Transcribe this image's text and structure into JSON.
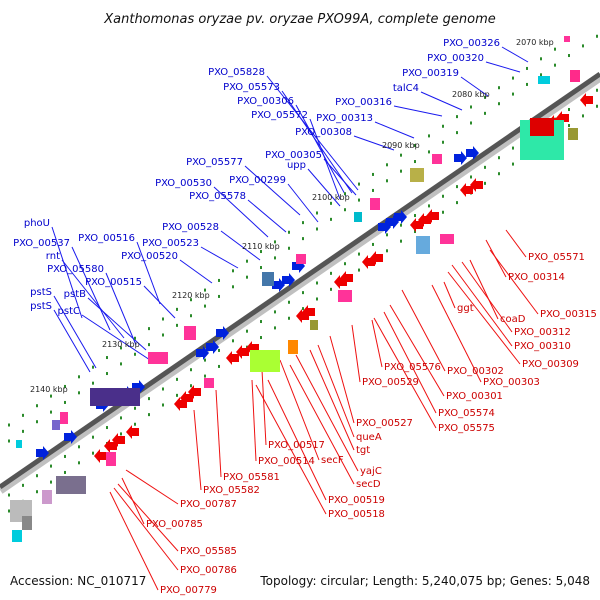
{
  "title": "Xanthomonas oryzae pv. oryzae PXO99A, complete genome",
  "accession": "Accession: NC_010717",
  "summary": "Topology: circular; Length: 5,240,075 bp; Genes: 5,048",
  "colors": {
    "backbone": "#555555",
    "forward_label": "#0000cc",
    "reverse_label": "#cc0000",
    "tick": "#2a8a2a",
    "forward_arrow": "#0022dd",
    "reverse_arrow": "#ee0000"
  },
  "kbp_ticks": [
    "2070 kbp",
    "2080 kbp",
    "2090 kbp",
    "2100 kbp",
    "2110 kbp",
    "2120 kbp",
    "2130 kbp",
    "2140 kbp"
  ],
  "forward_genes": [
    "PXO_00326",
    "PXO_00320",
    "PXO_00319",
    "PXO_00316",
    "talC4",
    "PXO_00313",
    "PXO_00308",
    "PXO_05828",
    "PXO_05573",
    "PXO_00306",
    "PXO_05572",
    "PXO_00305",
    "upp",
    "PXO_05577",
    "PXO_00299",
    "PXO_00530",
    "PXO_05578",
    "PXO_00528",
    "PXO_00523",
    "PXO_00516",
    "phoU",
    "PXO_00537",
    "PXO_00520",
    "rnt",
    "PXO_05580",
    "PXO_00515",
    "pstB",
    "pstS",
    "pstS",
    "pstC"
  ],
  "reverse_genes": [
    "PXO_05571",
    "PXO_00314",
    "PXO_00315",
    "coaD",
    "PXO_00312",
    "PXO_00310",
    "ggt",
    "PXO_00309",
    "PXO_00302",
    "PXO_00303",
    "PXO_00301",
    "PXO_05576",
    "PXO_00529",
    "PXO_05574",
    "PXO_05575",
    "PXO_00527",
    "queA",
    "tgt",
    "PXO_00517",
    "yajC",
    "secF",
    "secD",
    "PXO_00514",
    "PXO_05581",
    "PXO_00519",
    "PXO_00518",
    "PXO_05582",
    "PXO_00787",
    "PXO_00785",
    "PXO_05585",
    "PXO_00786",
    "PXO_00779"
  ]
}
